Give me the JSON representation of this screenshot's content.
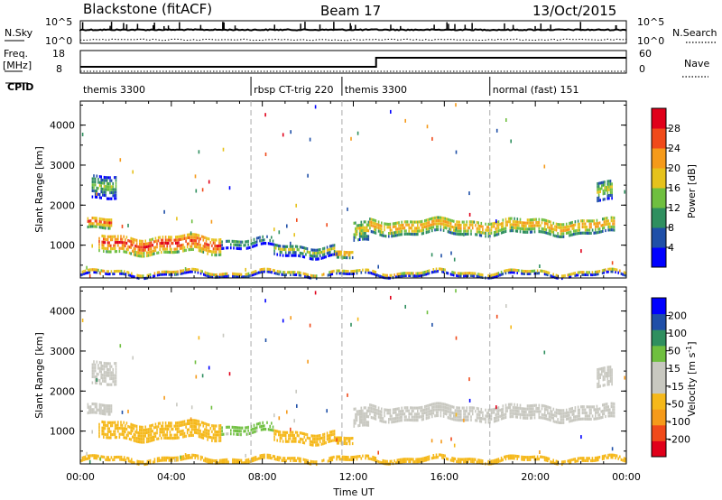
{
  "header": {
    "station": "Blackstone (fitACF)",
    "beam": "Beam 17",
    "date": "13/Oct/2015"
  },
  "panels": {
    "nsky_label": "N.Sky",
    "nsearch_label": "N.Search",
    "nsky_ticks": [
      "10^5",
      "10^0"
    ],
    "nsearch_ticks": [
      "10^5",
      "10^0"
    ],
    "freq_label_1": "Freq.",
    "freq_label_2": "[MHz]",
    "freq_ticks": [
      "18",
      "8"
    ],
    "nave_label": "Nave",
    "nave_ticks": [
      "60",
      "0"
    ],
    "cpid_label": "CPID",
    "cpid_segments": [
      {
        "label": "themis 3300",
        "start": 0.0
      },
      {
        "label": "rbsp CT-trig 220",
        "start": 7.5
      },
      {
        "label": "themis 3300",
        "start": 11.5
      },
      {
        "label": "normal (fast) 151",
        "start": 18.0
      }
    ]
  },
  "chart_data": [
    {
      "type": "heatmap",
      "title": "",
      "ylabel": "Slant Range [km]",
      "xlabel": "",
      "xlim": [
        0,
        24
      ],
      "ylim": [
        180,
        4600
      ],
      "yticks": [
        "1000",
        "2000",
        "3000",
        "4000"
      ],
      "colorbar": {
        "label": "Power [dB]",
        "ticks": [
          "28",
          "24",
          "20",
          "16",
          "12",
          "8",
          "4"
        ],
        "range": [
          0,
          32
        ],
        "colors": [
          "#0000ff",
          "#1f4fa8",
          "#2f8f5f",
          "#6fbf3f",
          "#e6c21c",
          "#f59a1a",
          "#f04a1a",
          "#e0001a"
        ]
      },
      "bands": [
        {
          "t0": 0.3,
          "t1": 1.4,
          "center": 1500,
          "width": 280,
          "value": 20
        },
        {
          "t0": 0.5,
          "t1": 1.6,
          "center": 2400,
          "width": 600,
          "value": 9
        },
        {
          "t0": 0.8,
          "t1": 6.2,
          "center": 1000,
          "width": 450,
          "value": 22
        },
        {
          "t0": 6.2,
          "t1": 8.5,
          "center": 1050,
          "width": 250,
          "value": 8
        },
        {
          "t0": 8.5,
          "t1": 11.2,
          "center": 850,
          "width": 300,
          "value": 10
        },
        {
          "t0": 11.2,
          "t1": 12.0,
          "center": 720,
          "width": 200,
          "value": 18
        },
        {
          "t0": 12.0,
          "t1": 12.7,
          "center": 1300,
          "width": 500,
          "value": 14
        },
        {
          "t0": 12.7,
          "t1": 23.5,
          "center": 1450,
          "width": 380,
          "value": 17
        },
        {
          "t0": 22.7,
          "t1": 23.4,
          "center": 2300,
          "width": 500,
          "value": 12
        },
        {
          "t0": 0.0,
          "t1": 24.0,
          "center": 280,
          "width": 120,
          "value": 12
        }
      ]
    },
    {
      "type": "heatmap",
      "title": "",
      "ylabel": "Slant Range [km]",
      "xlabel": "Time UT",
      "xlim": [
        0,
        24
      ],
      "ylim": [
        180,
        4600
      ],
      "yticks": [
        "1000",
        "2000",
        "3000",
        "4000"
      ],
      "xticks": [
        "00:00",
        "04:00",
        "08:00",
        "12:00",
        "16:00",
        "20:00",
        "00:00"
      ],
      "colorbar": {
        "label": "Velocity [m s^-1]",
        "ticks": [
          "200",
          "100",
          "50",
          "15",
          "-15",
          "-50",
          "-100",
          "-200"
        ],
        "range": [
          -250,
          250
        ],
        "colors": [
          "#e0001a",
          "#f04a1a",
          "#f59a1a",
          "#f5b81a",
          "#c8c8c0",
          "#c8c8c0",
          "#6fbf3f",
          "#2f8f5f",
          "#1f4fa8",
          "#0000ff"
        ]
      },
      "bands": [
        {
          "t0": 0.3,
          "t1": 1.4,
          "center": 1500,
          "width": 280,
          "value": 0
        },
        {
          "t0": 0.5,
          "t1": 1.6,
          "center": 2400,
          "width": 600,
          "value": -20
        },
        {
          "t0": 0.8,
          "t1": 6.2,
          "center": 1000,
          "width": 450,
          "value": -60
        },
        {
          "t0": 6.2,
          "t1": 8.5,
          "center": 1050,
          "width": 250,
          "value": 60
        },
        {
          "t0": 8.5,
          "t1": 11.2,
          "center": 850,
          "width": 300,
          "value": -70
        },
        {
          "t0": 11.2,
          "t1": 12.0,
          "center": 720,
          "width": 200,
          "value": -80
        },
        {
          "t0": 12.0,
          "t1": 12.7,
          "center": 1300,
          "width": 500,
          "value": 30
        },
        {
          "t0": 12.7,
          "t1": 23.5,
          "center": 1450,
          "width": 380,
          "value": 0
        },
        {
          "t0": 22.7,
          "t1": 23.4,
          "center": 2300,
          "width": 500,
          "value": -30
        },
        {
          "t0": 0.0,
          "t1": 24.0,
          "center": 280,
          "width": 120,
          "value": -60
        }
      ]
    }
  ]
}
